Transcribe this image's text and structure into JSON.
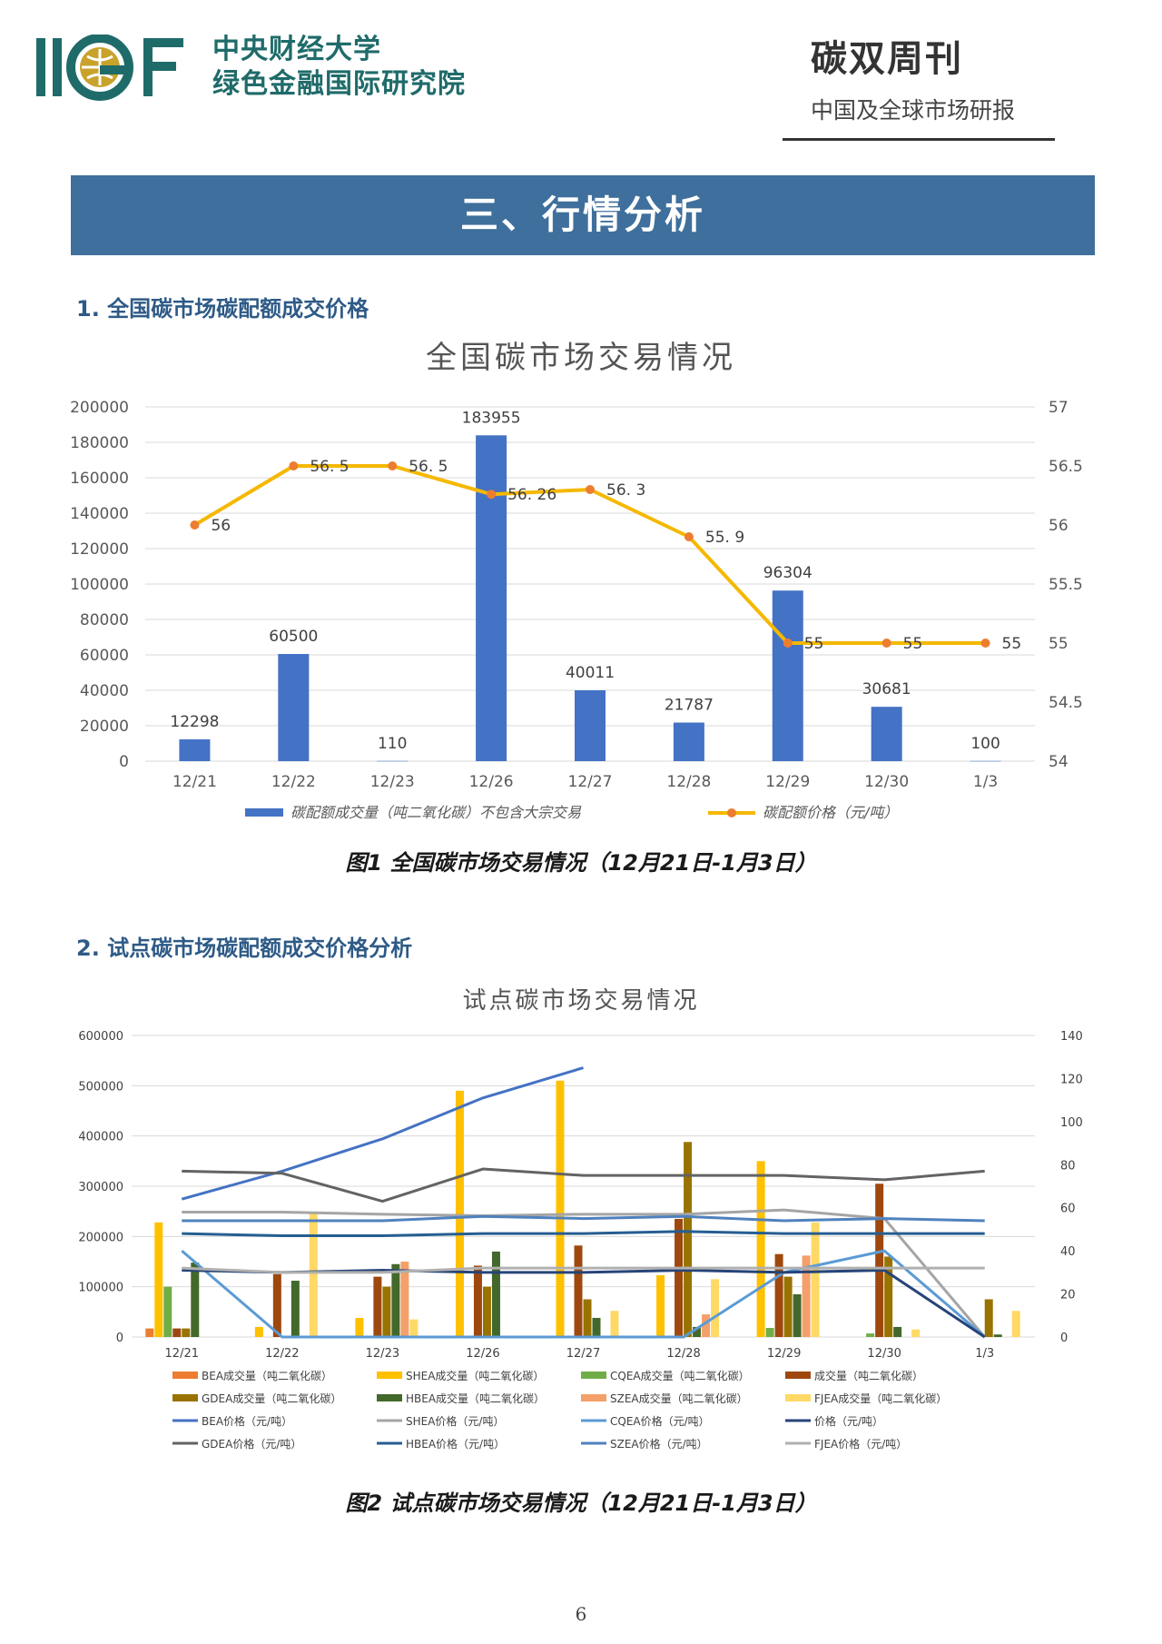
{
  "header": {
    "logo_text": "IIGF",
    "org_line1": "中央财经大学",
    "org_line2": "绿色金融国际研究院",
    "journal_title": "碳双周刊",
    "journal_subtitle": "中国及全球市场研报"
  },
  "banner": {
    "title": "三、行情分析"
  },
  "section1": {
    "heading": "1. 全国碳市场碳配额成交价格",
    "caption": "图1 全国碳市场交易情况（12月21日-1月3日）"
  },
  "section2": {
    "heading": "2. 试点碳市场碳配额成交价格分析",
    "caption": "图2 试点碳市场交易情况（12月21日-1月3日）"
  },
  "page_number": "6",
  "colors": {
    "banner": "#3f6f9c",
    "bar_blue": "#4472c4",
    "line_gold": "#f5b800",
    "marker_orange": "#ed7d31",
    "brand_teal": "#1f6b6a"
  },
  "chart_data": [
    {
      "type": "bar",
      "title": "全国碳市场交易情况",
      "categories": [
        "12/21",
        "12/22",
        "12/23",
        "12/26",
        "12/27",
        "12/28",
        "12/29",
        "12/30",
        "1/3"
      ],
      "series": [
        {
          "name": "碳配额成交量（吨二氧化碳）不包含大宗交易",
          "axis": "left",
          "type": "bar",
          "values": [
            12298,
            60500,
            110,
            183955,
            40011,
            21787,
            96304,
            30681,
            100
          ]
        },
        {
          "name": "碳配额价格（元/吨）",
          "axis": "right",
          "type": "line",
          "values": [
            56,
            56.5,
            56.5,
            56.26,
            56.3,
            55.9,
            55,
            55,
            55
          ]
        }
      ],
      "left_axis": {
        "ylim": [
          0,
          200000
        ],
        "ticks": [
          "0",
          "20000",
          "40000",
          "60000",
          "80000",
          "100000",
          "120000",
          "140000",
          "160000",
          "180000",
          "200000"
        ]
      },
      "right_axis": {
        "ylim": [
          54,
          57
        ],
        "ticks": [
          "54",
          "54.5",
          "55",
          "55.5",
          "56",
          "56.5",
          "57"
        ]
      },
      "bar_labels": [
        "12298",
        "60500",
        "110",
        "183955",
        "40011",
        "21787",
        "96304",
        "30681",
        "100"
      ],
      "line_labels": [
        "56",
        "56. 5",
        "56. 5",
        "56. 26",
        "56. 3",
        "55. 9",
        "55",
        "55",
        "55"
      ],
      "legend": [
        "碳配额成交量（吨二氧化碳）不包含大宗交易",
        "碳配额价格（元/吨）"
      ],
      "grid": true,
      "legend_position": "bottom"
    },
    {
      "type": "bar",
      "title": "试点碳市场交易情况",
      "categories": [
        "12/21",
        "12/22",
        "12/23",
        "12/26",
        "12/27",
        "12/28",
        "12/29",
        "12/30",
        "1/3"
      ],
      "left_axis": {
        "ylim": [
          0,
          600000
        ],
        "ticks": [
          "0",
          "100000",
          "200000",
          "300000",
          "400000",
          "500000",
          "600000"
        ]
      },
      "right_axis": {
        "ylim": [
          0,
          140
        ],
        "ticks": [
          "0",
          "20",
          "40",
          "60",
          "80",
          "100",
          "120",
          "140"
        ]
      },
      "bar_series": [
        {
          "name": "BEA成交量（吨二氧化碳）",
          "color": "#ed7d31",
          "values": [
            17000,
            0,
            0,
            0,
            0,
            0,
            0,
            0,
            0
          ]
        },
        {
          "name": "SHEA成交量（吨二氧化碳）",
          "color": "#ffc000",
          "values": [
            228000,
            20000,
            38000,
            490000,
            510000,
            123000,
            350000,
            0,
            0
          ]
        },
        {
          "name": "CQEA成交量（吨二氧化碳）",
          "color": "#70ad47",
          "values": [
            100000,
            0,
            0,
            0,
            2000,
            0,
            18000,
            7000,
            0
          ]
        },
        {
          "name": "成交量（吨二氧化碳）",
          "color": "#9e480e",
          "values": [
            17000,
            125000,
            120000,
            142000,
            182000,
            235000,
            165000,
            305000,
            0
          ]
        },
        {
          "name": "GDEA成交量（吨二氧化碳）",
          "color": "#997300",
          "values": [
            17000,
            0,
            100000,
            100000,
            75000,
            388000,
            120000,
            160000,
            75000
          ]
        },
        {
          "name": "HBEA成交量（吨二氧化碳）",
          "color": "#43682b",
          "values": [
            148000,
            112000,
            145000,
            170000,
            38000,
            20000,
            85000,
            20000,
            5000
          ]
        },
        {
          "name": "SZEA成交量（吨二氧化碳）",
          "color": "#f4a06a",
          "values": [
            0,
            0,
            150000,
            0,
            0,
            45000,
            162000,
            0,
            0
          ]
        },
        {
          "name": "FJEA成交量（吨二氧化碳）",
          "color": "#ffd966",
          "values": [
            0,
            245000,
            35000,
            0,
            52000,
            115000,
            228000,
            15000,
            52000
          ]
        }
      ],
      "line_series": [
        {
          "name": "BEA价格（元/吨）",
          "color": "#4472c4",
          "values": [
            64,
            77,
            92,
            111,
            125,
            null,
            null,
            null,
            null
          ]
        },
        {
          "name": "SHEA价格（元/吨）",
          "color": "#a5a5a5",
          "values": [
            58,
            58,
            57,
            56.3,
            57,
            57,
            59,
            55,
            0
          ]
        },
        {
          "name": "CQEA价格（元/吨）",
          "color": "#5b9bd5",
          "values": [
            40,
            0,
            0,
            0,
            0,
            0,
            30,
            40,
            0
          ]
        },
        {
          "name": "价格（元/吨）",
          "color": "#264478",
          "values": [
            31,
            30,
            31,
            30,
            30,
            31,
            30,
            31,
            0
          ]
        },
        {
          "name": "GDEA价格（元/吨）",
          "color": "#636363",
          "values": [
            77,
            76,
            63,
            78,
            75,
            75,
            75,
            73,
            77
          ]
        },
        {
          "name": "HBEA价格（元/吨）",
          "color": "#255e91",
          "values": [
            48,
            47,
            47,
            48,
            48,
            49,
            48,
            48,
            48
          ]
        },
        {
          "name": "SZEA价格（元/吨）",
          "color": "#4f81bd",
          "values": [
            54,
            54,
            54,
            56,
            55,
            56,
            54,
            55,
            54
          ]
        },
        {
          "name": "FJEA价格（元/吨）",
          "color": "#b0b0b0",
          "values": [
            32,
            30,
            30,
            32,
            32,
            32,
            32,
            32,
            32
          ]
        }
      ],
      "grid": true,
      "legend_position": "bottom"
    }
  ]
}
